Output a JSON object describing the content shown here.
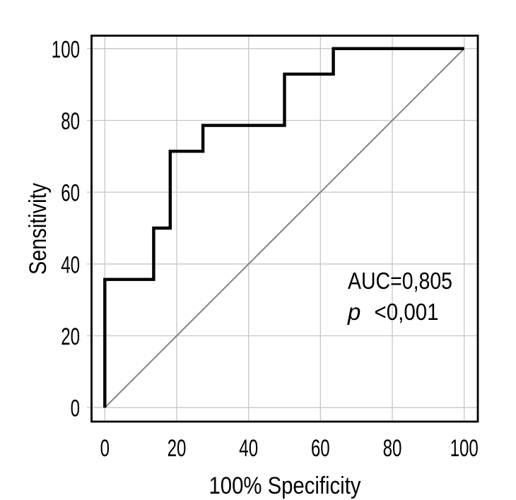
{
  "chart_data": {
    "type": "line",
    "subtype": "roc-step-curve",
    "title": "",
    "xlabel": "100% Specificity",
    "ylabel": "Sensitivity",
    "x_ticks": [
      0,
      20,
      40,
      60,
      80,
      100
    ],
    "y_ticks": [
      0,
      20,
      40,
      60,
      80,
      100
    ],
    "xlim": [
      -3.7,
      103.8
    ],
    "ylim": [
      -3.9,
      103.6
    ],
    "grid": true,
    "legend": "none",
    "series": [
      {
        "name": "reference-diagonal",
        "style": "line",
        "color": "#7f7f7f",
        "width": 1.9,
        "points": [
          [
            0,
            0
          ],
          [
            100,
            100
          ]
        ]
      },
      {
        "name": "roc-curve",
        "style": "step",
        "color": "#000000",
        "width": 4.4,
        "points": [
          [
            0,
            0
          ],
          [
            0,
            35.7
          ],
          [
            13.6,
            35.7
          ],
          [
            13.6,
            50
          ],
          [
            18.2,
            50
          ],
          [
            18.2,
            71.4
          ],
          [
            27.3,
            71.4
          ],
          [
            27.3,
            78.6
          ],
          [
            50,
            78.6
          ],
          [
            50,
            92.9
          ],
          [
            63.6,
            92.9
          ],
          [
            63.6,
            100
          ],
          [
            100,
            100
          ]
        ]
      }
    ],
    "annotation": {
      "auc_label": "AUC=0,805",
      "p_prefix": "p",
      "p_value": "<0,001"
    },
    "colors": {
      "background": "#ffffff",
      "grid": "#c6c6c6",
      "frame": "#000000",
      "diagonal": "#7f7f7f",
      "curve": "#000000",
      "text": "#000000"
    }
  }
}
